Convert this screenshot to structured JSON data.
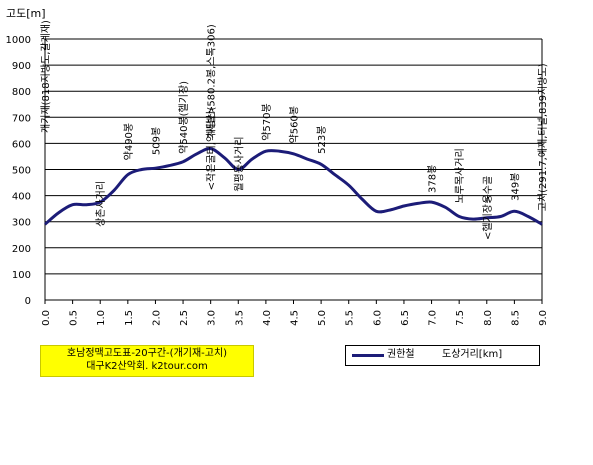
{
  "chart_data": {
    "type": "line",
    "ylabel": "고도[m]",
    "xlabel": "도상거리[km]",
    "ylim": [
      0,
      1000
    ],
    "xlim": [
      0,
      9
    ],
    "grid": "horizontal",
    "legend_position": "bottom-right",
    "yticks": [
      "0",
      "100",
      "200",
      "300",
      "400",
      "500",
      "600",
      "700",
      "800",
      "900",
      "1000"
    ],
    "xticks": [
      "0.0",
      "0.5",
      "1.0",
      "1.5",
      "2.0",
      "2.5",
      "3.0",
      "3.5",
      "4.0",
      "4.5",
      "5.0",
      "5.5",
      "6.0",
      "6.5",
      "7.0",
      "7.5",
      "8.0",
      "8.5",
      "9.0"
    ],
    "line_color": "#1c1c78",
    "series": [
      {
        "name": "권한철",
        "x": [
          0.0,
          0.25,
          0.5,
          0.75,
          1.0,
          1.25,
          1.5,
          1.75,
          2.0,
          2.25,
          2.5,
          2.75,
          3.0,
          3.25,
          3.5,
          3.75,
          4.0,
          4.25,
          4.5,
          4.75,
          5.0,
          5.25,
          5.5,
          5.75,
          6.0,
          6.25,
          6.5,
          6.75,
          7.0,
          7.25,
          7.5,
          7.75,
          8.0,
          8.25,
          8.5,
          8.75,
          9.0
        ],
        "values": [
          290,
          335,
          365,
          365,
          375,
          420,
          480,
          500,
          505,
          515,
          530,
          560,
          580,
          545,
          500,
          540,
          570,
          570,
          560,
          540,
          520,
          480,
          440,
          385,
          340,
          345,
          360,
          370,
          375,
          355,
          320,
          310,
          315,
          320,
          340,
          320,
          290
        ]
      }
    ],
    "annotations": [
      {
        "text": "개기재(818지방도,갈계재)",
        "x": 0.0,
        "y": 640
      },
      {
        "text": "상촌사거리",
        "x": 1.0,
        "y": 280
      },
      {
        "text": "약490봉",
        "x": 1.5,
        "y": 535
      },
      {
        "text": "509봉",
        "x": 2.0,
        "y": 555
      },
      {
        "text": "약540봉(헬기장)",
        "x": 2.5,
        "y": 560
      },
      {
        "text": "계당산(580.2봉,스톡306)",
        "x": 3.0,
        "y": 620
      },
      {
        "text": "<작은굴터,억새밭>",
        "x": 3.0,
        "y": 420
      },
      {
        "text": "월평동사거리",
        "x": 3.5,
        "y": 415
      },
      {
        "text": "약570봉",
        "x": 4.0,
        "y": 610
      },
      {
        "text": "약560봉",
        "x": 4.5,
        "y": 600
      },
      {
        "text": "523봉",
        "x": 5.0,
        "y": 560
      },
      {
        "text": "378봉",
        "x": 7.0,
        "y": 410
      },
      {
        "text": "노루목사거리",
        "x": 7.5,
        "y": 370
      },
      {
        "text": "옹수골",
        "x": 8.0,
        "y": 370
      },
      {
        "text": "<헬기장>",
        "x": 8.0,
        "y": 230
      },
      {
        "text": "349봉",
        "x": 8.5,
        "y": 380
      },
      {
        "text": "고치(291.7,예재,터널,839지방도)",
        "x": 9.0,
        "y": 340
      }
    ]
  },
  "title_box": {
    "line1": "호남정맥고도표-20구간-(개기재-고치)",
    "line2": "대구K2산악회. k2tour.com"
  },
  "legend": {
    "series_name": "권한철",
    "axis_label": "도상거리[km]"
  }
}
